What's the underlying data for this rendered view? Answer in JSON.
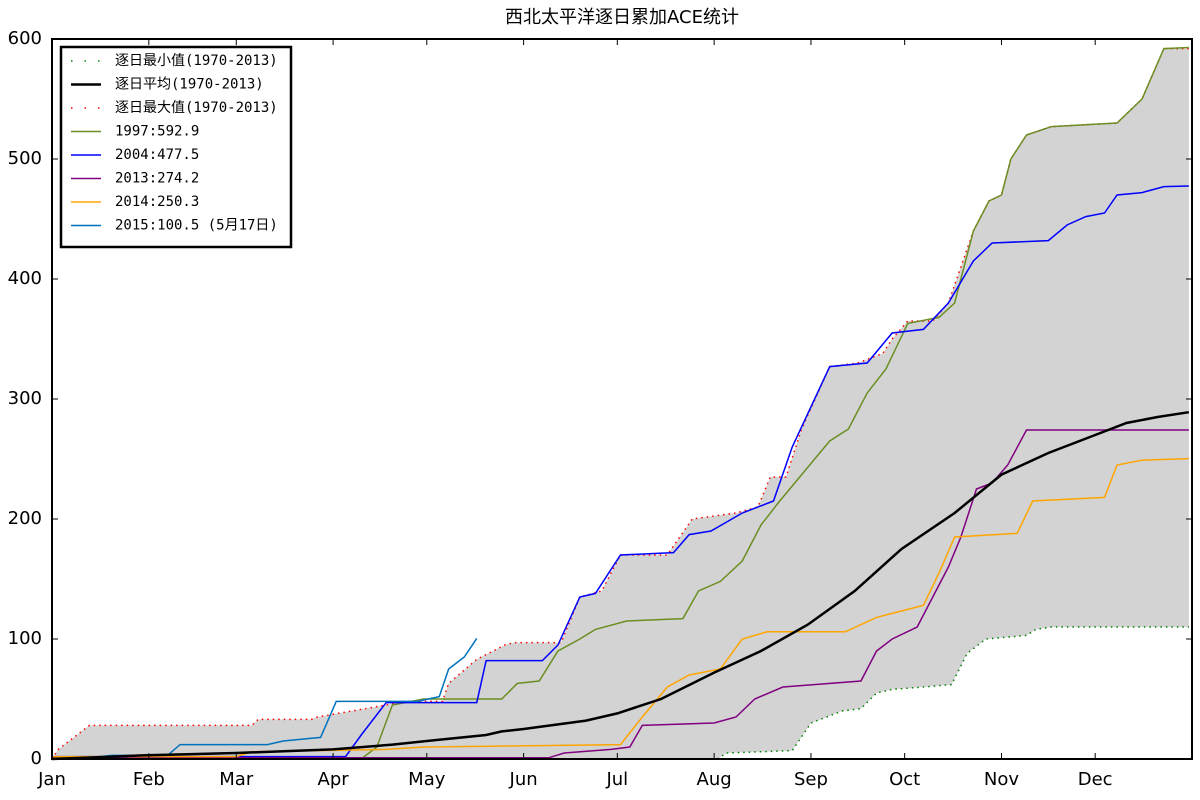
{
  "chart_data": {
    "type": "line",
    "title": "西北太平洋逐日累加ACE统计",
    "xlim": [
      1,
      366
    ],
    "xticks": [
      {
        "value": 1,
        "label": "Jan"
      },
      {
        "value": 32,
        "label": "Feb"
      },
      {
        "value": 60,
        "label": "Mar"
      },
      {
        "value": 91,
        "label": "Apr"
      },
      {
        "value": 121,
        "label": "May"
      },
      {
        "value": 152,
        "label": "Jun"
      },
      {
        "value": 182,
        "label": "Jul"
      },
      {
        "value": 213,
        "label": "Aug"
      },
      {
        "value": 244,
        "label": "Sep"
      },
      {
        "value": 274,
        "label": "Oct"
      },
      {
        "value": 305,
        "label": "Nov"
      },
      {
        "value": 335,
        "label": "Dec"
      }
    ],
    "ylim": [
      0,
      600
    ],
    "yticks": [
      0,
      100,
      200,
      300,
      400,
      500,
      600
    ],
    "grid": false,
    "legend": "upper left",
    "fill_between": {
      "color": "#d3d3d3",
      "lower": 0,
      "upper": 2
    },
    "series": [
      {
        "name": "逐日最小值(1970-2013)",
        "color": "#008000",
        "dash": "dotted",
        "width": 1.5,
        "x": [
          1,
          214,
          217,
          238,
          244,
          254,
          260,
          265,
          270,
          280,
          289,
          294,
          300,
          313,
          316,
          321,
          365
        ],
        "values": [
          0,
          0,
          5,
          7,
          30,
          40,
          42,
          55,
          58,
          60,
          62,
          88,
          100,
          103,
          108,
          110,
          110
        ]
      },
      {
        "name": "逐日平均(1970-2013)",
        "color": "#000000",
        "dash": "solid",
        "width": 2.5,
        "x": [
          1,
          30,
          60,
          91,
          110,
          121,
          140,
          145,
          152,
          172,
          182,
          196,
          213,
          228,
          243,
          258,
          273,
          290,
          305,
          320,
          335,
          345,
          355,
          365
        ],
        "values": [
          0,
          3,
          5,
          8,
          12,
          15,
          20,
          23,
          25,
          32,
          38,
          50,
          72,
          90,
          112,
          140,
          175,
          205,
          237,
          255,
          270,
          280,
          285,
          289
        ]
      },
      {
        "name": "逐日最大值(1970-2013)",
        "color": "#ff0000",
        "dash": "dotted",
        "width": 1.5,
        "x": [
          1,
          3,
          13,
          65,
          67,
          84,
          86,
          108,
          113,
          126,
          128,
          137,
          146,
          149,
          164,
          170,
          177,
          183,
          198,
          206,
          220,
          227,
          231,
          236,
          241,
          250,
          259,
          267,
          270,
          275,
          283,
          288,
          296,
          301,
          305,
          308,
          313,
          321,
          342,
          350,
          357,
          365
        ],
        "values": [
          0,
          8,
          28,
          28,
          33,
          33,
          35,
          45,
          48,
          48,
          63,
          83,
          95,
          97,
          97,
          135,
          140,
          170,
          170,
          200,
          205,
          210,
          235,
          235,
          275,
          327,
          330,
          338,
          350,
          365,
          365,
          380,
          440,
          465,
          470,
          500,
          520,
          527,
          530,
          550,
          592,
          592
        ]
      },
      {
        "name": "1997:592.9",
        "color": "#6b8e23",
        "dash": "solid",
        "width": 1.5,
        "x": [
          1,
          100,
          105,
          110,
          120,
          145,
          150,
          157,
          163,
          170,
          175,
          185,
          203,
          208,
          215,
          222,
          228,
          234,
          242,
          250,
          256,
          262,
          268,
          275,
          285,
          290,
          296,
          301,
          305,
          308,
          313,
          321,
          342,
          350,
          357,
          365
        ],
        "values": [
          0,
          0,
          10,
          45,
          50,
          50,
          63,
          65,
          90,
          100,
          108,
          115,
          117,
          140,
          148,
          165,
          195,
          215,
          240,
          265,
          275,
          305,
          325,
          363,
          368,
          380,
          440,
          465,
          470,
          500,
          520,
          527,
          530,
          550,
          592,
          592.9
        ]
      },
      {
        "name": "2004:477.5",
        "color": "#0000ff",
        "dash": "solid",
        "width": 1.5,
        "x": [
          1,
          95,
          100,
          108,
          137,
          140,
          158,
          163,
          170,
          175,
          183,
          200,
          205,
          212,
          222,
          232,
          238,
          250,
          262,
          270,
          280,
          288,
          296,
          302,
          320,
          326,
          332,
          338,
          342,
          350,
          357,
          365
        ],
        "values": [
          2,
          2,
          20,
          47,
          47,
          82,
          82,
          95,
          135,
          138,
          170,
          172,
          187,
          190,
          205,
          215,
          260,
          327,
          330,
          355,
          358,
          380,
          415,
          430,
          432,
          445,
          452,
          455,
          470,
          472,
          477,
          477.5
        ]
      },
      {
        "name": "2013:274.2",
        "color": "#800080",
        "dash": "solid",
        "width": 1.5,
        "x": [
          1,
          160,
          165,
          180,
          186,
          190,
          213,
          220,
          226,
          235,
          245,
          260,
          265,
          270,
          278,
          283,
          288,
          292,
          297,
          302,
          307,
          313,
          365
        ],
        "values": [
          1,
          1,
          5,
          8,
          10,
          28,
          30,
          35,
          50,
          60,
          62,
          65,
          90,
          100,
          110,
          135,
          160,
          185,
          225,
          230,
          245,
          274.2,
          274.2
        ]
      },
      {
        "name": "2014:250.3",
        "color": "#ffa500",
        "dash": "solid",
        "width": 1.5,
        "x": [
          1,
          60,
          65,
          108,
          120,
          183,
          190,
          198,
          205,
          215,
          222,
          230,
          255,
          265,
          280,
          285,
          290,
          310,
          315,
          338,
          342,
          350,
          365
        ],
        "values": [
          2,
          2,
          6,
          8,
          10,
          12,
          35,
          60,
          70,
          75,
          100,
          106,
          106,
          118,
          128,
          155,
          185,
          188,
          215,
          218,
          245,
          249,
          250.3
        ]
      },
      {
        "name": "2015:100.5 (5月17日)",
        "color": "#0072bd",
        "dash": "solid",
        "width": 1.5,
        "x": [
          1,
          10,
          20,
          38,
          42,
          70,
          75,
          87,
          92,
          118,
          125,
          128,
          133,
          137
        ],
        "values": [
          0,
          0,
          3,
          3,
          12,
          12,
          15,
          18,
          48,
          48,
          52,
          75,
          85,
          100.5
        ]
      }
    ]
  }
}
